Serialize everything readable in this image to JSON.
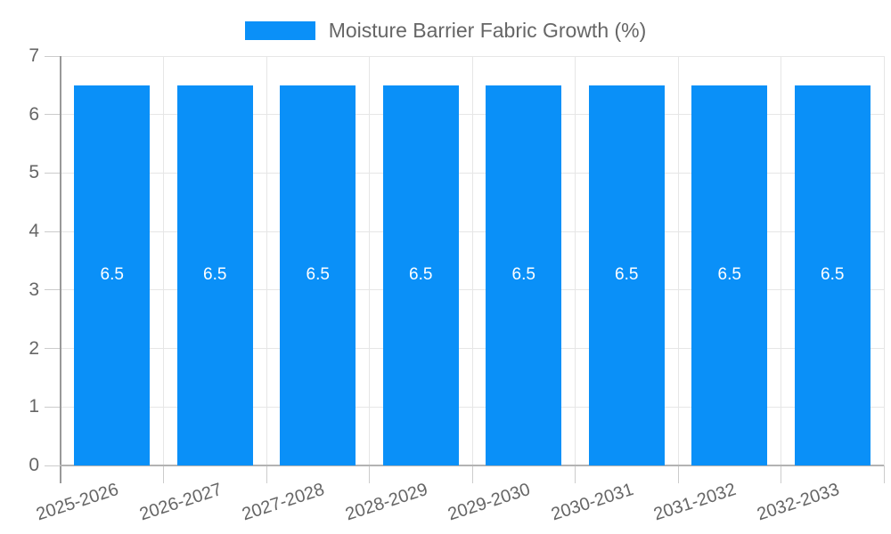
{
  "legend": {
    "label": "Moisture Barrier Fabric Growth (%)"
  },
  "colors": {
    "bar": "#0a90f8",
    "axis_left": "#999999",
    "axis_bottom": "#b3b3b3",
    "grid": "#e6e6e6",
    "tick": "#cccccc",
    "text": "#666666",
    "value_label": "#ffffff"
  },
  "chart_data": {
    "type": "bar",
    "title": "Moisture Barrier Fabric Growth (%)",
    "categories": [
      "2025-2026",
      "2026-2027",
      "2027-2028",
      "2028-2029",
      "2029-2030",
      "2030-2031",
      "2031-2032",
      "2032-2033"
    ],
    "series": [
      {
        "name": "Moisture Barrier Fabric Growth (%)",
        "values": [
          6.5,
          6.5,
          6.5,
          6.5,
          6.5,
          6.5,
          6.5,
          6.5
        ]
      }
    ],
    "value_labels": [
      "6.5",
      "6.5",
      "6.5",
      "6.5",
      "6.5",
      "6.5",
      "6.5",
      "6.5"
    ],
    "xlabel": "",
    "ylabel": "",
    "ylim": [
      0,
      7
    ],
    "y_ticks": [
      0,
      1,
      2,
      3,
      4,
      5,
      6,
      7
    ],
    "grid": true,
    "legend_position": "top",
    "x_label_rotation_deg": -18
  }
}
